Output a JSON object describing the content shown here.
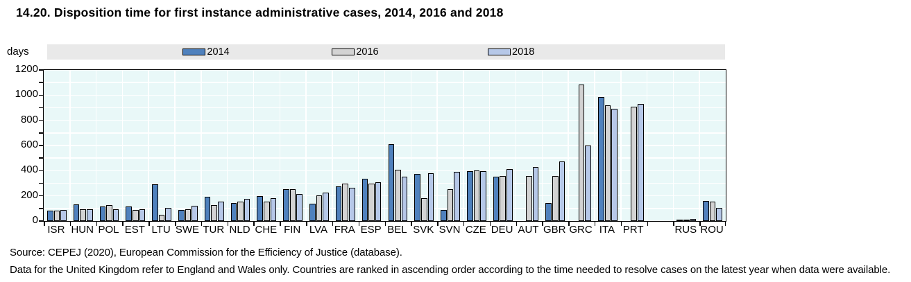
{
  "header": {
    "title": "14.20. Disposition time for first instance administrative cases, 2014, 2016 and 2018"
  },
  "chart_data": {
    "type": "bar",
    "title": "14.20. Disposition time for first instance administrative cases, 2014, 2016 and 2018",
    "unit_label": "days",
    "ylabel": "days",
    "xlabel": "",
    "ylim": [
      0,
      1200
    ],
    "ytick_step": 200,
    "gridline_step": 100,
    "grid": true,
    "legend_position": "top",
    "plot_bg_color": "#e9f8f8",
    "gridline_color": "#ffffff",
    "legend_band_color": "#e9e9e9",
    "categories": [
      "ISR",
      "HUN",
      "POL",
      "EST",
      "LTU",
      "SWE",
      "TUR",
      "NLD",
      "CHE",
      "FIN",
      "LVA",
      "FRA",
      "ESP",
      "BEL",
      "SVK",
      "SVN",
      "CZE",
      "DEU",
      "AUT",
      "GBR",
      "GRC",
      "ITA",
      "PRT",
      "",
      "RUS",
      "ROU"
    ],
    "series": [
      {
        "name": "2014",
        "color": "#4f81bd",
        "values": [
          80,
          130,
          115,
          115,
          290,
          90,
          190,
          145,
          200,
          255,
          135,
          275,
          335,
          610,
          375,
          90,
          395,
          350,
          null,
          145,
          null,
          985,
          null,
          null,
          5,
          160
        ]
      },
      {
        "name": "2016",
        "color": "#d3d3d3",
        "values": [
          80,
          95,
          125,
          90,
          50,
          95,
          125,
          155,
          155,
          255,
          205,
          295,
          295,
          410,
          180,
          255,
          400,
          360,
          360,
          360,
          1085,
          920,
          910,
          null,
          5,
          155
        ]
      },
      {
        "name": "2018",
        "color": "#b6c8e8",
        "values": [
          90,
          95,
          95,
          95,
          105,
          120,
          155,
          175,
          180,
          215,
          225,
          265,
          310,
          355,
          380,
          390,
          395,
          415,
          430,
          475,
          600,
          890,
          930,
          null,
          15,
          105
        ]
      }
    ],
    "y_axis_labels": [
      "0",
      "200",
      "400",
      "600",
      "800",
      "1000",
      "1200"
    ]
  },
  "footer": {
    "source": "Source: CEPEJ (2020), European Commission for the Efficiency of Justice (database).",
    "note": "Data for the United Kingdom refer to England and Wales only. Countries are ranked in ascending order according to the time needed to resolve cases on the latest year when data were available."
  }
}
